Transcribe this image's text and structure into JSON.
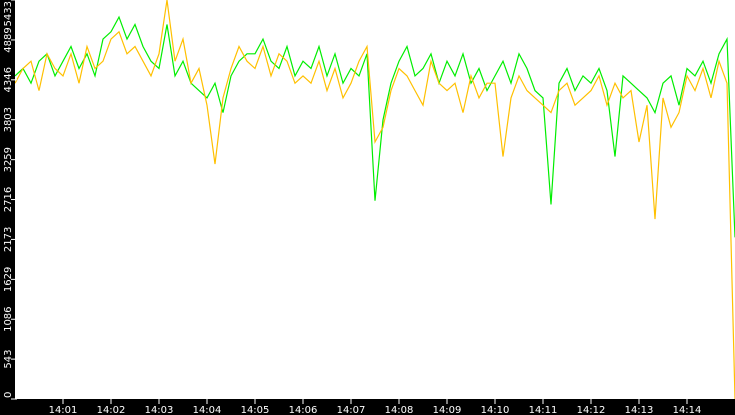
{
  "chart_data": {
    "type": "line",
    "title": "",
    "xlabel": "",
    "ylabel": "",
    "ylim": [
      0,
      5433
    ],
    "xlim": [
      "14:00:00",
      "14:15:00"
    ],
    "grid": false,
    "legend": "none",
    "y_ticks": [
      "0",
      "543",
      "1086",
      "1629",
      "2173",
      "2716",
      "3259",
      "3803",
      "4346",
      "4889",
      "5433"
    ],
    "x_ticks": [
      "14:01",
      "14:02",
      "14:03",
      "14:04",
      "14:05",
      "14:06",
      "14:07",
      "14:08",
      "14:09",
      "14:10",
      "14:11",
      "14:12",
      "14:13",
      "14:14"
    ],
    "colors": {
      "background": "#ffffff",
      "axis": "#000000",
      "series_green": "#00ee00",
      "series_orange": "#ffc000"
    },
    "x": [
      "14:00:00",
      "14:00:10",
      "14:00:20",
      "14:00:30",
      "14:00:40",
      "14:00:50",
      "14:01:00",
      "14:01:10",
      "14:01:20",
      "14:01:30",
      "14:01:40",
      "14:01:50",
      "14:02:00",
      "14:02:10",
      "14:02:20",
      "14:02:30",
      "14:02:40",
      "14:02:50",
      "14:03:00",
      "14:03:10",
      "14:03:20",
      "14:03:30",
      "14:03:40",
      "14:03:50",
      "14:04:00",
      "14:04:10",
      "14:04:20",
      "14:04:30",
      "14:04:40",
      "14:04:50",
      "14:05:00",
      "14:05:10",
      "14:05:20",
      "14:05:30",
      "14:05:40",
      "14:05:50",
      "14:06:00",
      "14:06:10",
      "14:06:20",
      "14:06:30",
      "14:06:40",
      "14:06:50",
      "14:07:00",
      "14:07:10",
      "14:07:20",
      "14:07:30",
      "14:07:40",
      "14:07:50",
      "14:08:00",
      "14:08:10",
      "14:08:20",
      "14:08:30",
      "14:08:40",
      "14:08:50",
      "14:09:00",
      "14:09:10",
      "14:09:20",
      "14:09:30",
      "14:09:40",
      "14:09:50",
      "14:10:00",
      "14:10:10",
      "14:10:20",
      "14:10:30",
      "14:10:40",
      "14:10:50",
      "14:11:00",
      "14:11:10",
      "14:11:20",
      "14:11:30",
      "14:11:40",
      "14:11:50",
      "14:12:00",
      "14:12:10",
      "14:12:20",
      "14:12:30",
      "14:12:40",
      "14:12:50",
      "14:13:00",
      "14:13:10",
      "14:13:20",
      "14:13:30",
      "14:13:40",
      "14:13:50",
      "14:14:00",
      "14:14:10",
      "14:14:20",
      "14:14:30",
      "14:14:40",
      "14:14:50",
      "14:15:00"
    ],
    "series": [
      {
        "color": "#00ee00",
        "values": [
          4400,
          4500,
          4300,
          4600,
          4700,
          4400,
          4600,
          4800,
          4500,
          4700,
          4400,
          4900,
          5000,
          5200,
          4900,
          5100,
          4800,
          4600,
          4500,
          5100,
          4400,
          4600,
          4300,
          4200,
          4100,
          4300,
          3900,
          4400,
          4600,
          4700,
          4700,
          4900,
          4600,
          4500,
          4800,
          4400,
          4600,
          4500,
          4800,
          4400,
          4700,
          4300,
          4500,
          4400,
          4700,
          2700,
          3800,
          4300,
          4600,
          4800,
          4400,
          4500,
          4700,
          4300,
          4600,
          4400,
          4700,
          4300,
          4500,
          4200,
          4400,
          4600,
          4300,
          4700,
          4500,
          4200,
          4100,
          2650,
          4300,
          4500,
          4200,
          4400,
          4300,
          4500,
          4200,
          3300,
          4400,
          4300,
          4200,
          4100,
          3900,
          4300,
          4400,
          4000,
          4500,
          4400,
          4600,
          4300,
          4700,
          4900,
          2200
        ]
      },
      {
        "color": "#ffc000",
        "values": [
          4300,
          4500,
          4600,
          4200,
          4700,
          4500,
          4400,
          4700,
          4300,
          4800,
          4500,
          4600,
          4900,
          5000,
          4700,
          4800,
          4600,
          4400,
          4700,
          5433,
          4600,
          4900,
          4300,
          4500,
          4000,
          3200,
          4100,
          4500,
          4800,
          4600,
          4500,
          4800,
          4400,
          4700,
          4600,
          4300,
          4400,
          4300,
          4600,
          4200,
          4500,
          4100,
          4300,
          4600,
          4800,
          3500,
          3700,
          4200,
          4500,
          4400,
          4200,
          4000,
          4600,
          4300,
          4200,
          4300,
          3900,
          4400,
          4100,
          4300,
          4300,
          3300,
          4100,
          4400,
          4200,
          4100,
          4000,
          3900,
          4200,
          4300,
          4000,
          4100,
          4200,
          4400,
          4000,
          4300,
          4100,
          4200,
          3500,
          4000,
          2450,
          4100,
          3700,
          3900,
          4400,
          4200,
          4500,
          4100,
          4600,
          4300,
          0
        ]
      }
    ]
  }
}
